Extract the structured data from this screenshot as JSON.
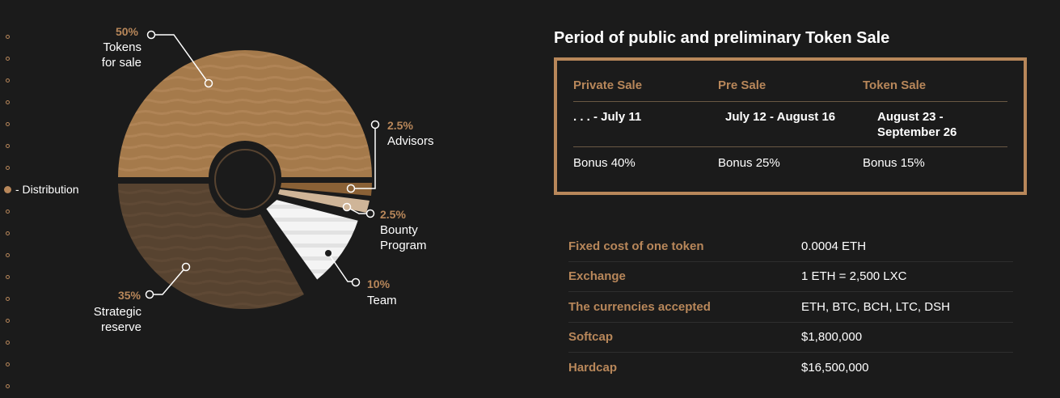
{
  "nav": {
    "active_label": "- Distribution",
    "accent": "#b8875a"
  },
  "chart_data": {
    "type": "pie",
    "slices": [
      {
        "pct": "50%",
        "value": 50,
        "label1": "Tokens",
        "label2": "for sale",
        "color": "#a57a4b"
      },
      {
        "pct": "2.5%",
        "value": 2.5,
        "label1": "Advisors",
        "label2": "",
        "color": "#8a6136"
      },
      {
        "pct": "2.5%",
        "value": 2.5,
        "label1": "Bounty",
        "label2": "Program",
        "color": "#cfb598"
      },
      {
        "pct": "10%",
        "value": 10,
        "label1": "Team",
        "label2": "",
        "color": "#f2f2f2"
      },
      {
        "pct": "35%",
        "value": 35,
        "label1": "Strategic",
        "label2": "reserve",
        "color": "#574330"
      }
    ]
  },
  "sale": {
    "title": "Period of public and preliminary Token Sale",
    "columns": [
      {
        "name": "Private Sale",
        "dates": ". . . - July 11",
        "bonus": "Bonus 40%"
      },
      {
        "name": "Pre Sale",
        "dates": "July 12 - August 16",
        "bonus": "Bonus 25%"
      },
      {
        "name": "Token Sale",
        "dates": "August 23 - September 26",
        "bonus": "Bonus 15%"
      }
    ]
  },
  "info": [
    {
      "key": "Fixed cost of one token",
      "value": "0.0004 ETH"
    },
    {
      "key": "Exchange",
      "value": "1 ETH = 2,500 LXC"
    },
    {
      "key": "The currencies accepted",
      "value": "ETH, BTC, BCH, LTC, DSH"
    },
    {
      "key": "Softcap",
      "value": "$1,800,000"
    },
    {
      "key": "Hardcap",
      "value": "$16,500,000"
    }
  ]
}
